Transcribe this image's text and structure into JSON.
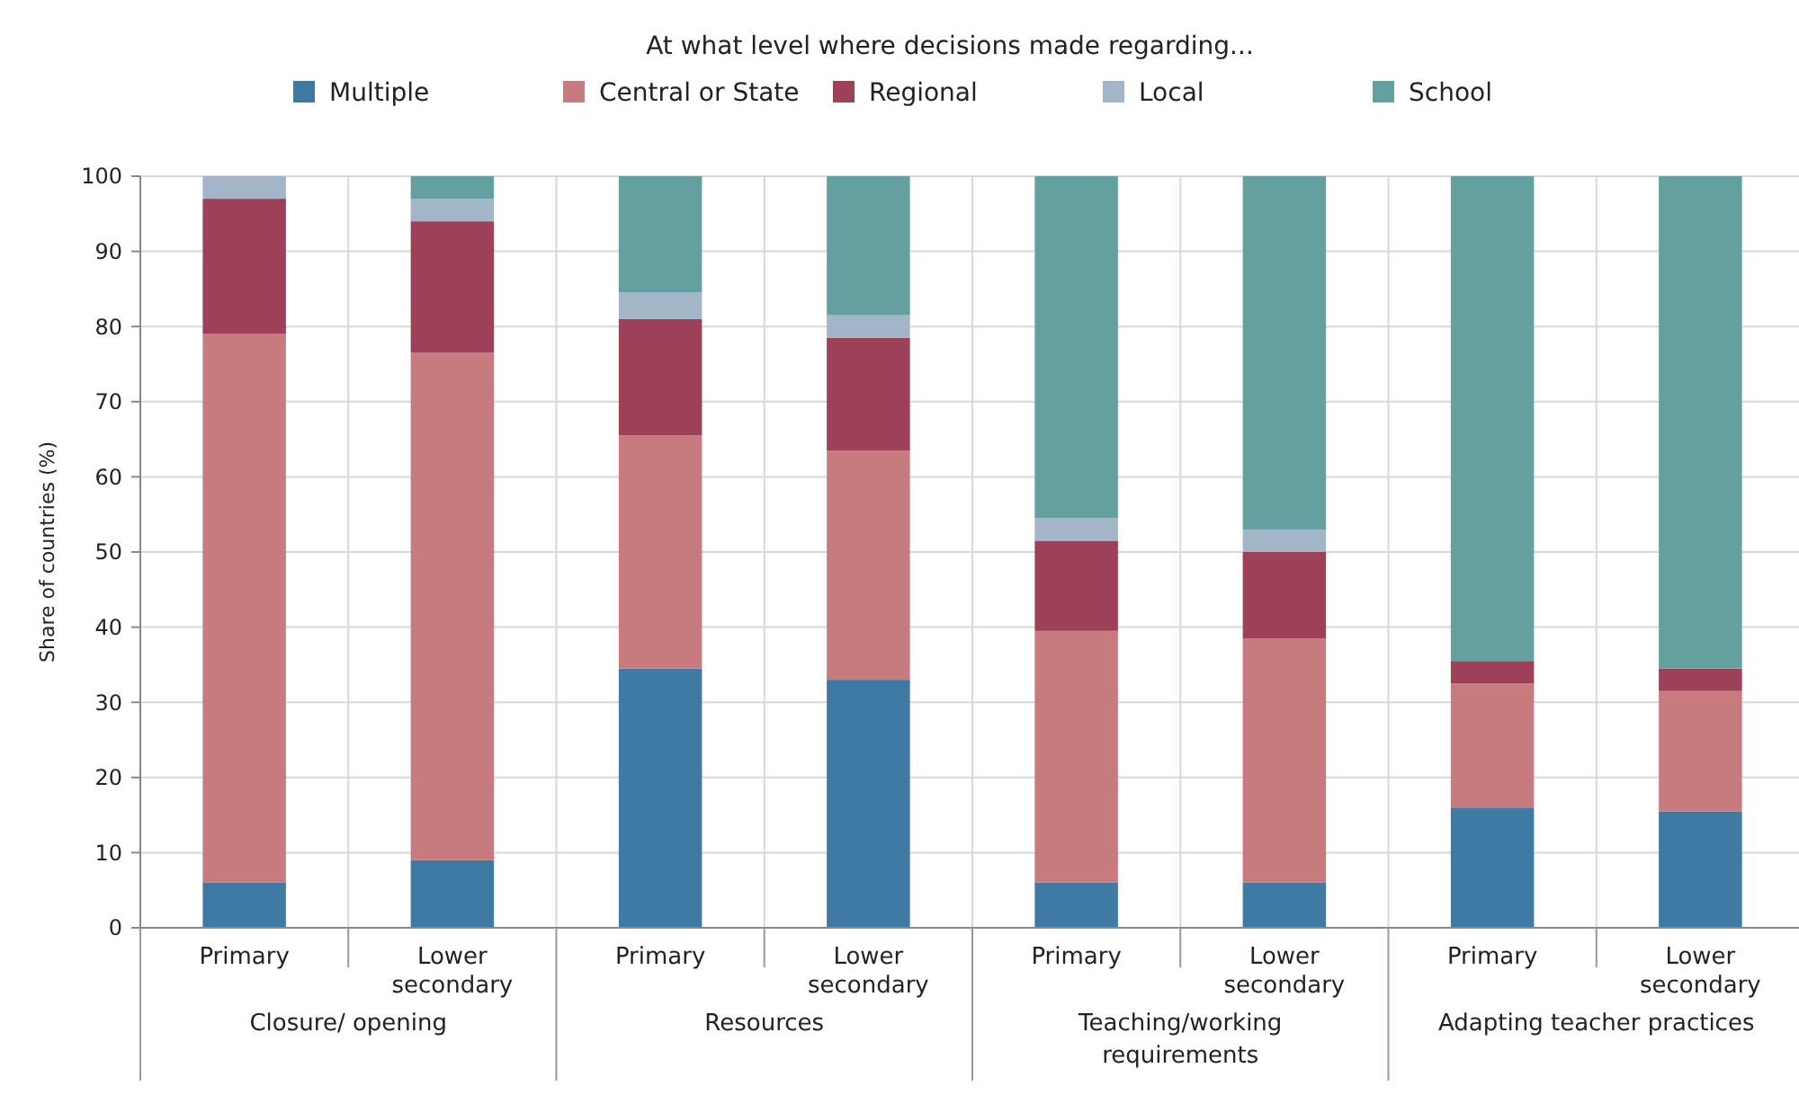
{
  "chart_data": {
    "type": "bar",
    "stacked": true,
    "legend_title": "At what level where decisions made regarding...",
    "ylabel": "Share of countries (%)",
    "categories": [
      "Primary",
      "Lower secondary",
      "Primary",
      "Lower secondary",
      "Primary",
      "Lower secondary",
      "Primary",
      "Lower secondary"
    ],
    "annotations": [
      "Closure/ opening",
      "Resources",
      "Teaching/working requirements",
      "Adapting teacher practices"
    ],
    "series": [
      {
        "name": "Multiple",
        "color": "#3f7aa5",
        "values": [
          6,
          9,
          34.5,
          33,
          6,
          6,
          16,
          15.5
        ]
      },
      {
        "name": "Central or State",
        "color": "#c77b7f",
        "values": [
          73,
          67.5,
          31,
          30.5,
          33.5,
          32.5,
          16.5,
          16
        ]
      },
      {
        "name": "Regional",
        "color": "#9e4058",
        "values": [
          18,
          17.5,
          15.5,
          15,
          12,
          11.5,
          3,
          3
        ]
      },
      {
        "name": "Local",
        "color": "#a3b5c8",
        "values": [
          3,
          3,
          3.5,
          3,
          3,
          3,
          0,
          0
        ]
      },
      {
        "name": "School",
        "color": "#64a0a0",
        "values": [
          0,
          3,
          15.5,
          18.5,
          45.5,
          47,
          64.5,
          65.5
        ]
      }
    ],
    "ylim": [
      0,
      100
    ],
    "yticks": [
      0,
      10,
      20,
      30,
      40,
      50,
      60,
      70,
      80,
      90,
      100
    ],
    "grid": true,
    "legend": "top"
  }
}
